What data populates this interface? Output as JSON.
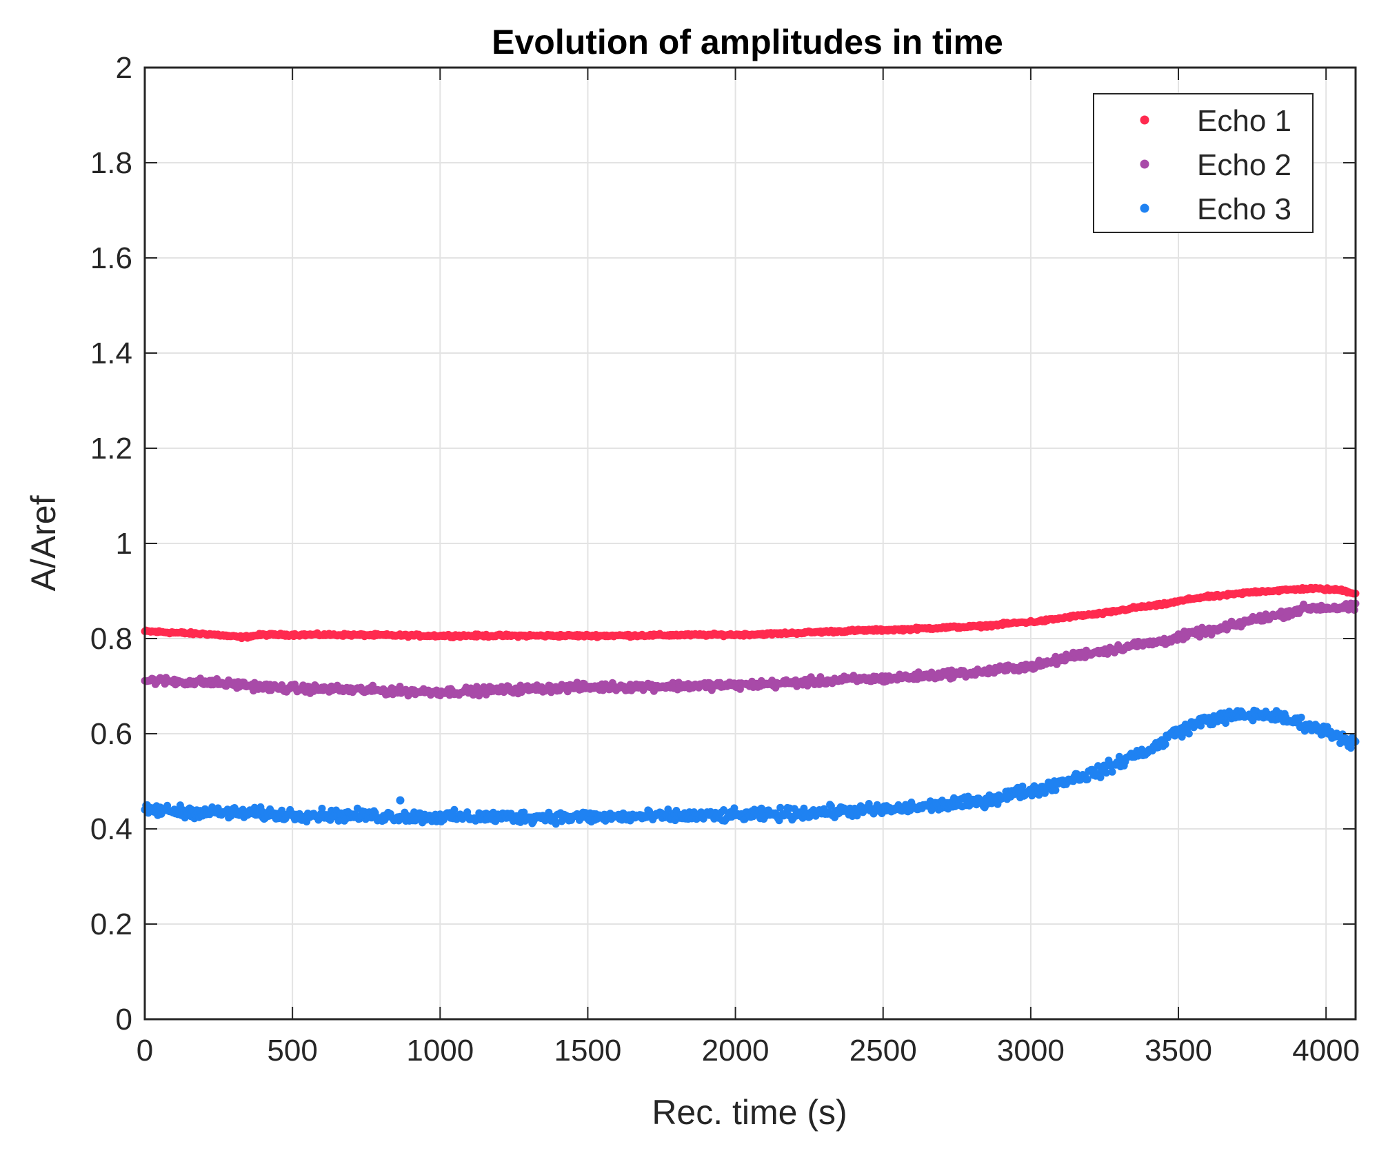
{
  "chart_data": {
    "type": "scatter",
    "title": "Evolution of amplitudes in time",
    "xlabel": "Rec. time (s)",
    "ylabel": "A/Aref",
    "xlim": [
      0,
      4100
    ],
    "ylim": [
      0,
      2
    ],
    "xticks": [
      0,
      500,
      1000,
      1500,
      2000,
      2500,
      3000,
      3500,
      4000
    ],
    "yticks": [
      0,
      0.2,
      0.4,
      0.6,
      0.8,
      1,
      1.2,
      1.4,
      1.6,
      1.8,
      2
    ],
    "ytick_labels": [
      "0",
      "0.2",
      "0.4",
      "0.6",
      "0.8",
      "1",
      "1.2",
      "1.4",
      "1.6",
      "1.8",
      "2"
    ],
    "grid": true,
    "legend_position": "top-right",
    "series": [
      {
        "name": "Echo 1",
        "color": "#ff2a4f",
        "noise": 0.004,
        "x": [
          0,
          200,
          330,
          400,
          600,
          1000,
          1500,
          2000,
          2500,
          2800,
          3000,
          3200,
          3400,
          3600,
          3800,
          3950,
          4050,
          4100
        ],
        "y": [
          0.815,
          0.81,
          0.803,
          0.808,
          0.808,
          0.806,
          0.806,
          0.808,
          0.818,
          0.825,
          0.835,
          0.85,
          0.868,
          0.888,
          0.9,
          0.905,
          0.902,
          0.895
        ]
      },
      {
        "name": "Echo 2",
        "color": "#a84aa8",
        "noise": 0.012,
        "x": [
          0,
          200,
          500,
          1000,
          1500,
          2000,
          2500,
          2800,
          3000,
          3200,
          3400,
          3600,
          3800,
          3950,
          4100
        ],
        "y": [
          0.712,
          0.708,
          0.695,
          0.688,
          0.698,
          0.702,
          0.716,
          0.728,
          0.742,
          0.77,
          0.79,
          0.815,
          0.845,
          0.865,
          0.865
        ]
      },
      {
        "name": "Echo 3",
        "color": "#1f82f2",
        "noise": 0.018,
        "x": [
          0,
          200,
          500,
          1000,
          1500,
          2000,
          2500,
          2800,
          3000,
          3200,
          3400,
          3500,
          3600,
          3700,
          3800,
          3900,
          4000,
          4100
        ],
        "y": [
          0.44,
          0.435,
          0.43,
          0.425,
          0.425,
          0.428,
          0.44,
          0.455,
          0.48,
          0.515,
          0.565,
          0.605,
          0.63,
          0.638,
          0.64,
          0.625,
          0.605,
          0.58
        ]
      }
    ],
    "outliers": [
      {
        "series": "Echo 3",
        "x": 865,
        "y": 0.46
      }
    ]
  }
}
